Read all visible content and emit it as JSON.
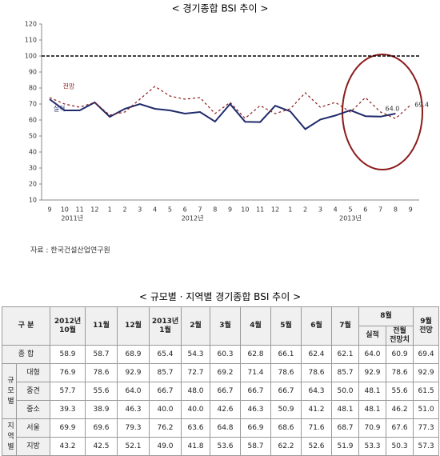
{
  "chart_data": {
    "type": "line",
    "title": "< 경기종합 BSI 추이 >",
    "categories": [
      "9",
      "10",
      "11",
      "12",
      "1",
      "2",
      "3",
      "4",
      "5",
      "6",
      "7",
      "8",
      "9",
      "10",
      "11",
      "12",
      "1",
      "2",
      "3",
      "4",
      "5",
      "6",
      "7",
      "8",
      "9"
    ],
    "category_groups": [
      {
        "label": "2011년",
        "start": 0,
        "end": 3
      },
      {
        "label": "2012년",
        "start": 4,
        "end": 15
      },
      {
        "label": "2013년",
        "start": 16,
        "end": 24
      }
    ],
    "series": [
      {
        "name": "실적",
        "color": "#1f2a6b",
        "dashed": false,
        "values": [
          73,
          66,
          66,
          71,
          62,
          67,
          70,
          67,
          66,
          64,
          65,
          59,
          70,
          58.9,
          58.7,
          68.9,
          65.4,
          54.3,
          60.3,
          62.8,
          66.1,
          62.4,
          62.1,
          64.0,
          null
        ],
        "value_labels": [
          null,
          null,
          null,
          null,
          null,
          null,
          null,
          null,
          null,
          null,
          null,
          null,
          null,
          null,
          null,
          null,
          null,
          null,
          null,
          null,
          null,
          null,
          null,
          "64.0",
          null
        ]
      },
      {
        "name": "전망",
        "color": "#8b1a1a",
        "dashed": true,
        "values": [
          74,
          70,
          68,
          71,
          63,
          65,
          73,
          81,
          75,
          73,
          74,
          64,
          71,
          61,
          69,
          64,
          67,
          77,
          68,
          71,
          65,
          74,
          65,
          60.9,
          69.4
        ],
        "value_labels": [
          null,
          null,
          null,
          null,
          null,
          null,
          null,
          null,
          null,
          null,
          null,
          null,
          null,
          null,
          null,
          null,
          null,
          null,
          null,
          null,
          null,
          null,
          null,
          null,
          "69.4"
        ]
      }
    ],
    "ylim": [
      10,
      120
    ],
    "yticks": [
      10,
      20,
      30,
      40,
      50,
      60,
      70,
      80,
      90,
      100,
      110,
      120
    ],
    "reference_line": 100,
    "source": "자료 : 한국건설산업연구원"
  },
  "table": {
    "title": "< 규모별 · 지역별 경기종합 BSI 추이 >",
    "header": {
      "label": "구 분",
      "columns": [
        "2012년\n10월",
        "11월",
        "12월",
        "2013년\n1월",
        "2월",
        "3월",
        "4월",
        "5월",
        "6월",
        "7월"
      ],
      "group": "8월",
      "subcolumns": [
        "실적",
        "전월\n전망치"
      ],
      "last": "9월\n전망"
    },
    "total": {
      "label": "종 합",
      "values": [
        "58.9",
        "58.7",
        "68.9",
        "65.4",
        "54.3",
        "60.3",
        "62.8",
        "66.1",
        "62.4",
        "62.1",
        "64.0",
        "60.9",
        "69.4"
      ]
    },
    "groups": [
      {
        "label": "규모별",
        "rows": [
          {
            "label": "대형",
            "values": [
              "76.9",
              "78.6",
              "92.9",
              "85.7",
              "72.7",
              "69.2",
              "71.4",
              "78.6",
              "78.6",
              "85.7",
              "92.9",
              "78.6",
              "92.9"
            ]
          },
          {
            "label": "중견",
            "values": [
              "57.7",
              "55.6",
              "64.0",
              "66.7",
              "48.0",
              "66.7",
              "66.7",
              "66.7",
              "64.3",
              "50.0",
              "48.1",
              "55.6",
              "61.5"
            ]
          },
          {
            "label": "중소",
            "values": [
              "39.3",
              "38.9",
              "46.3",
              "40.0",
              "40.0",
              "42.6",
              "46.3",
              "50.9",
              "41.2",
              "48.1",
              "48.1",
              "46.2",
              "51.0"
            ]
          }
        ]
      },
      {
        "label": "지역별",
        "rows": [
          {
            "label": "서울",
            "values": [
              "69.9",
              "69.6",
              "79.3",
              "76.2",
              "63.6",
              "64.8",
              "66.9",
              "68.6",
              "71.6",
              "68.7",
              "70.9",
              "67.6",
              "77.3"
            ]
          },
          {
            "label": "지방",
            "values": [
              "43.2",
              "42.5",
              "52.1",
              "49.0",
              "41.8",
              "53.6",
              "58.7",
              "62.2",
              "52.6",
              "51.9",
              "53.3",
              "50.3",
              "57.3"
            ]
          }
        ]
      }
    ]
  }
}
